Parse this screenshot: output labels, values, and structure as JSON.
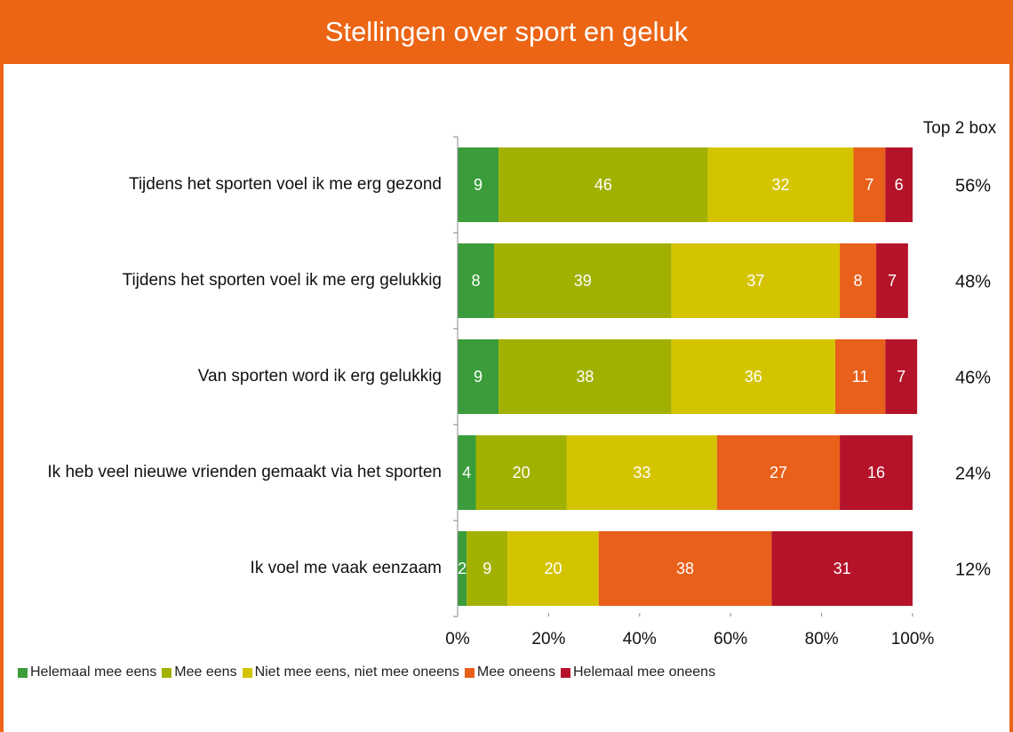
{
  "chart_data": {
    "type": "stacked_barh",
    "title": "Stellingen over sport en geluk",
    "categories": [
      "Tijdens het sporten voel ik me erg gezond",
      "Tijdens het sporten voel ik me erg gelukkig",
      "Van sporten word ik erg gelukkig",
      "Ik heb veel nieuwe vrienden gemaakt via het sporten",
      "Ik voel me vaak eenzaam"
    ],
    "series": [
      {
        "name": "Helemaal mee eens",
        "color": "#3a9c3a",
        "values": [
          9,
          8,
          9,
          4,
          2
        ]
      },
      {
        "name": "Mee eens",
        "color": "#a2b000",
        "values": [
          46,
          39,
          38,
          20,
          9
        ]
      },
      {
        "name": "Niet mee eens, niet mee oneens",
        "color": "#d4c400",
        "values": [
          32,
          37,
          36,
          33,
          20
        ]
      },
      {
        "name": "Mee oneens",
        "color": "#e8601a",
        "values": [
          7,
          8,
          11,
          27,
          38
        ]
      },
      {
        "name": "Helemaal mee oneens",
        "color": "#b5132a",
        "values": [
          6,
          7,
          7,
          16,
          31
        ]
      }
    ],
    "xlim": [
      0,
      100
    ],
    "xticks": [
      {
        "value": 0,
        "label": "0%"
      },
      {
        "value": 20,
        "label": "20%"
      },
      {
        "value": 40,
        "label": "40%"
      },
      {
        "value": 60,
        "label": "60%"
      },
      {
        "value": 80,
        "label": "80%"
      },
      {
        "value": 100,
        "label": "100%"
      }
    ],
    "top2": {
      "title": "Top 2 box",
      "values": [
        56,
        48,
        46,
        24,
        12
      ],
      "value_labels": [
        "56%",
        "48%",
        "46%",
        "24%",
        "12%"
      ]
    }
  }
}
